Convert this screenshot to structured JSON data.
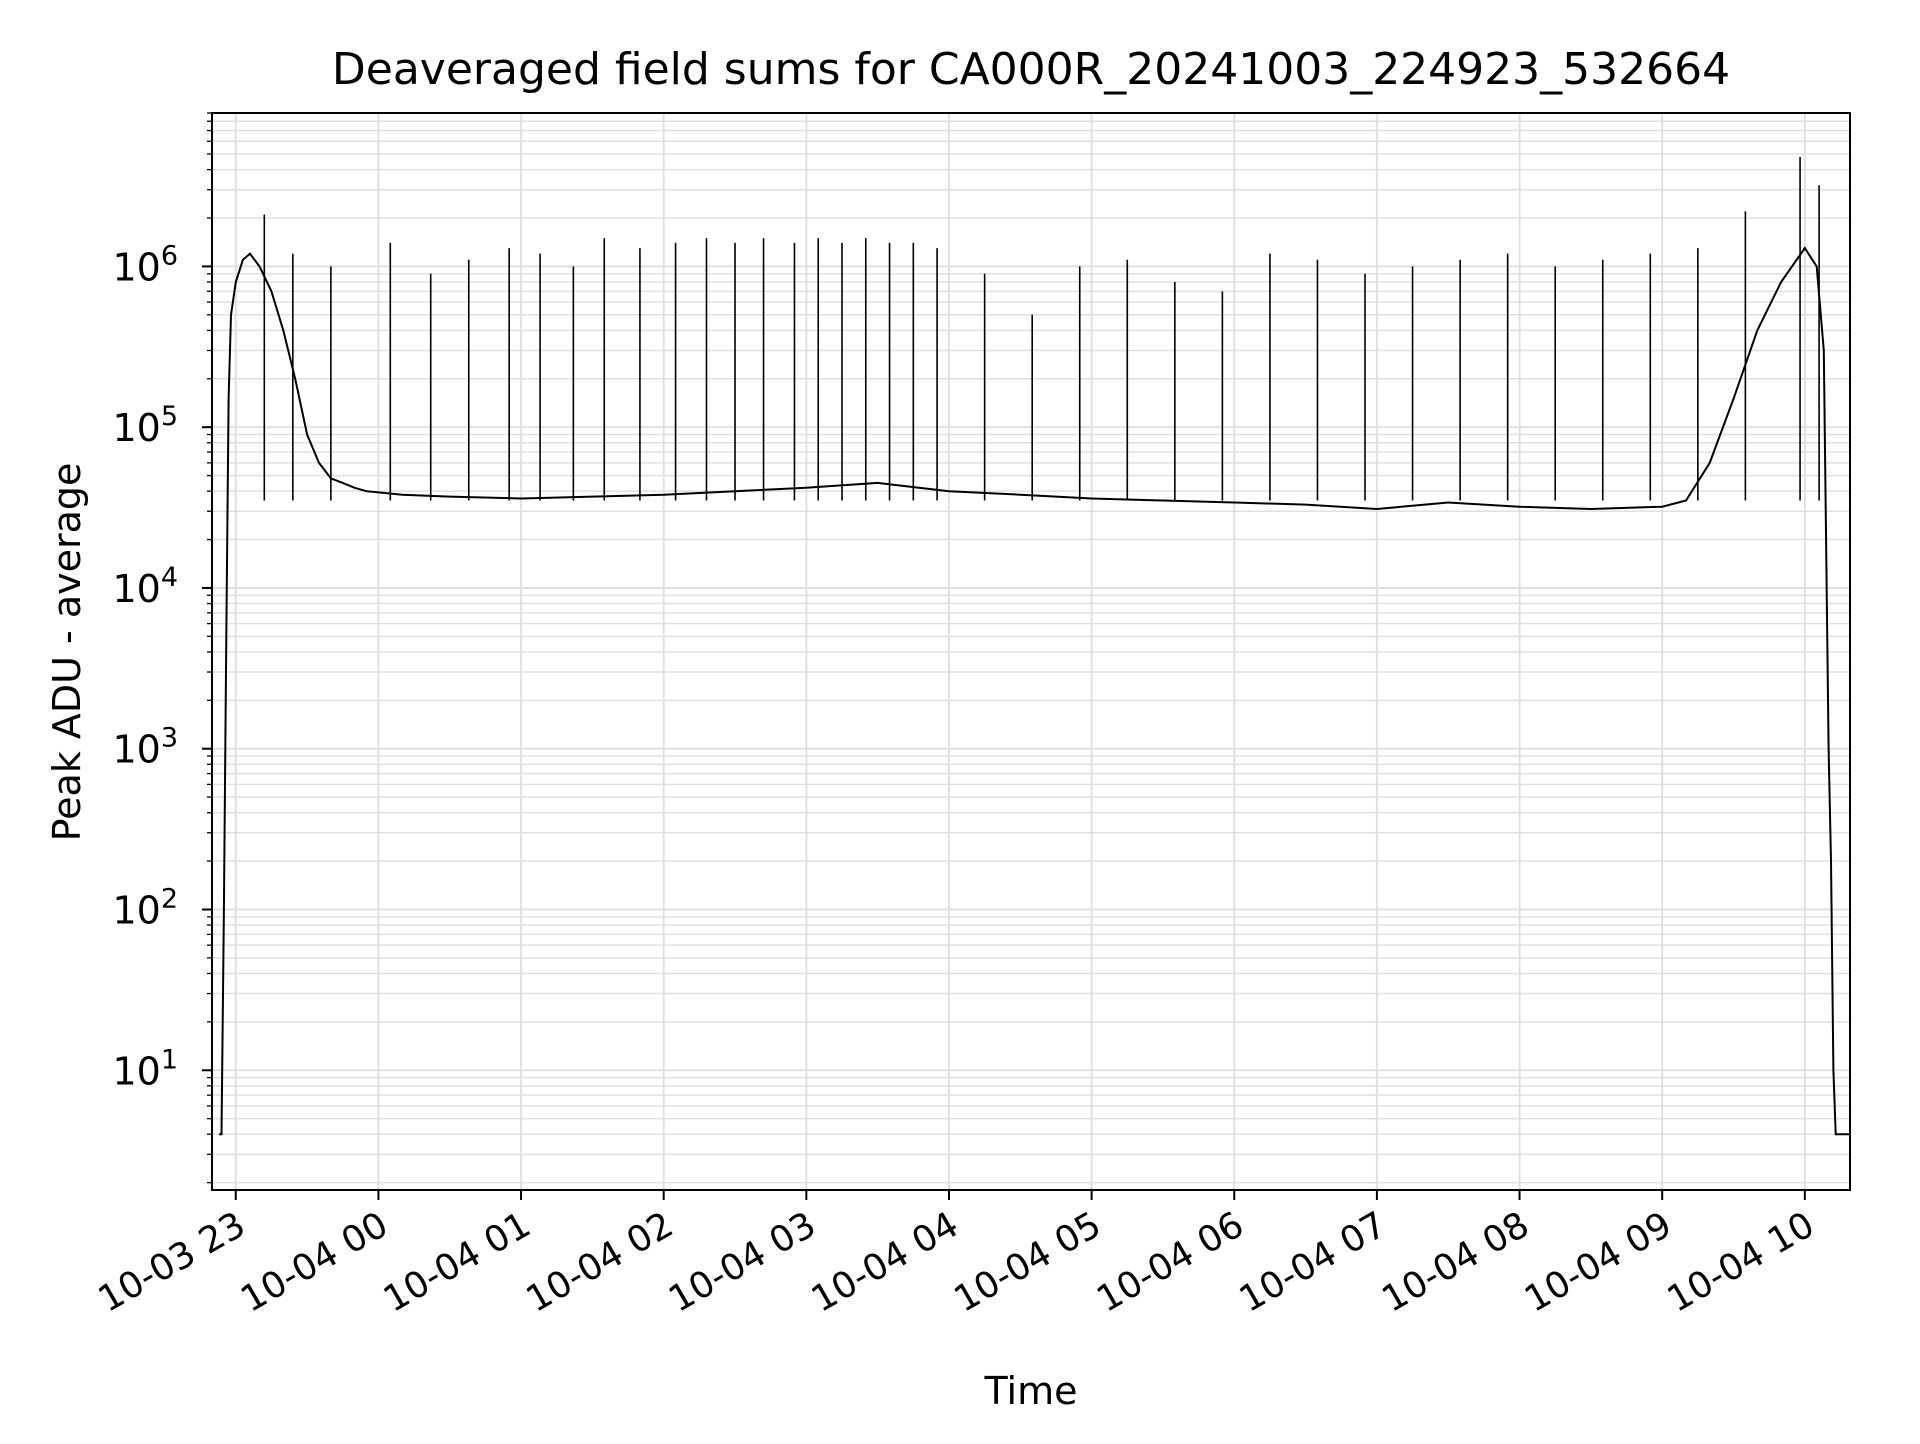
{
  "chart_data": {
    "type": "line",
    "title": "Deaveraged field sums for CA000R_20241003_224923_532664",
    "xlabel": "Time",
    "ylabel": "Peak ADU - average",
    "yscale": "log",
    "ylim": [
      1.8,
      9000000
    ],
    "xlim": [
      "2024-10-03 22:50",
      "2024-10-04 10:19"
    ],
    "grid": true,
    "line_color": "#000000",
    "grid_color": "#e0e0e0",
    "x_ticks": [
      {
        "value": "2024-10-03 23:00",
        "label": "10-03 23"
      },
      {
        "value": "2024-10-04 00:00",
        "label": "10-04 00"
      },
      {
        "value": "2024-10-04 01:00",
        "label": "10-04 01"
      },
      {
        "value": "2024-10-04 02:00",
        "label": "10-04 02"
      },
      {
        "value": "2024-10-04 03:00",
        "label": "10-04 03"
      },
      {
        "value": "2024-10-04 04:00",
        "label": "10-04 04"
      },
      {
        "value": "2024-10-04 05:00",
        "label": "10-04 05"
      },
      {
        "value": "2024-10-04 06:00",
        "label": "10-04 06"
      },
      {
        "value": "2024-10-04 07:00",
        "label": "10-04 07"
      },
      {
        "value": "2024-10-04 08:00",
        "label": "10-04 08"
      },
      {
        "value": "2024-10-04 09:00",
        "label": "10-04 09"
      },
      {
        "value": "2024-10-04 10:00",
        "label": "10-04 10"
      }
    ],
    "y_ticks": [
      {
        "value": 10,
        "base": "10",
        "exp": "1"
      },
      {
        "value": 100,
        "base": "10",
        "exp": "2"
      },
      {
        "value": 1000,
        "base": "10",
        "exp": "3"
      },
      {
        "value": 10000,
        "base": "10",
        "exp": "4"
      },
      {
        "value": 100000,
        "base": "10",
        "exp": "5"
      },
      {
        "value": 1000000,
        "base": "10",
        "exp": "6"
      }
    ],
    "series": [
      {
        "x": [
          "2024-10-03 22:53",
          "2024-10-03 22:54",
          "2024-10-03 22:55",
          "2024-10-03 22:56",
          "2024-10-03 22:57",
          "2024-10-03 22:58",
          "2024-10-03 23:00",
          "2024-10-03 23:03",
          "2024-10-03 23:06",
          "2024-10-03 23:10",
          "2024-10-03 23:15",
          "2024-10-03 23:20",
          "2024-10-03 23:25",
          "2024-10-03 23:30",
          "2024-10-03 23:35",
          "2024-10-03 23:40",
          "2024-10-03 23:45",
          "2024-10-03 23:50",
          "2024-10-03 23:55",
          "2024-10-04 00:10",
          "2024-10-04 00:30",
          "2024-10-04 01:00",
          "2024-10-04 01:30",
          "2024-10-04 02:00",
          "2024-10-04 02:30",
          "2024-10-04 03:00",
          "2024-10-04 03:30",
          "2024-10-04 04:00",
          "2024-10-04 04:30",
          "2024-10-04 05:00",
          "2024-10-04 05:30",
          "2024-10-04 06:00",
          "2024-10-04 06:30",
          "2024-10-04 07:00",
          "2024-10-04 07:30",
          "2024-10-04 08:00",
          "2024-10-04 08:30",
          "2024-10-04 09:00",
          "2024-10-04 09:10",
          "2024-10-04 09:20",
          "2024-10-04 09:30",
          "2024-10-04 09:40",
          "2024-10-04 09:50",
          "2024-10-04 10:00",
          "2024-10-04 10:05",
          "2024-10-04 10:08",
          "2024-10-04 10:10",
          "2024-10-04 10:11",
          "2024-10-04 10:12",
          "2024-10-04 10:13",
          "2024-10-04 10:15",
          "2024-10-04 10:19"
        ],
        "y": [
          4,
          4,
          100,
          5000,
          150000,
          500000,
          800000,
          1100000,
          1200000,
          1000000,
          700000,
          400000,
          200000,
          90000,
          60000,
          48000,
          45000,
          42000,
          40000,
          38000,
          37000,
          36000,
          37000,
          38000,
          40000,
          42000,
          45000,
          40000,
          38000,
          36000,
          35000,
          34000,
          33000,
          31000,
          34000,
          32000,
          31000,
          32000,
          35000,
          60000,
          150000,
          400000,
          800000,
          1300000,
          1000000,
          300000,
          1000,
          200,
          10,
          4,
          4,
          4
        ]
      },
      {
        "spike_x": [
          "2024-10-03 23:12",
          "2024-10-03 23:24",
          "2024-10-03 23:40",
          "2024-10-04 00:05",
          "2024-10-04 00:22",
          "2024-10-04 00:38",
          "2024-10-04 00:55",
          "2024-10-04 01:08",
          "2024-10-04 01:22",
          "2024-10-04 01:35",
          "2024-10-04 01:50",
          "2024-10-04 02:05",
          "2024-10-04 02:18",
          "2024-10-04 02:30",
          "2024-10-04 02:42",
          "2024-10-04 02:55",
          "2024-10-04 03:05",
          "2024-10-04 03:15",
          "2024-10-04 03:25",
          "2024-10-04 03:35",
          "2024-10-04 03:45",
          "2024-10-04 03:55",
          "2024-10-04 04:15",
          "2024-10-04 04:35",
          "2024-10-04 04:55",
          "2024-10-04 05:15",
          "2024-10-04 05:35",
          "2024-10-04 05:55",
          "2024-10-04 06:15",
          "2024-10-04 06:35",
          "2024-10-04 06:55",
          "2024-10-04 07:15",
          "2024-10-04 07:35",
          "2024-10-04 07:55",
          "2024-10-04 08:15",
          "2024-10-04 08:35",
          "2024-10-04 08:55",
          "2024-10-04 09:15",
          "2024-10-04 09:35",
          "2024-10-04 09:58",
          "2024-10-04 10:06"
        ],
        "spike_y": [
          2100000,
          1200000,
          1000000,
          1400000,
          900000,
          1100000,
          1300000,
          1200000,
          1000000,
          1500000,
          1300000,
          1400000,
          1500000,
          1400000,
          1500000,
          1400000,
          1500000,
          1400000,
          1500000,
          1400000,
          1400000,
          1300000,
          900000,
          500000,
          1000000,
          1100000,
          800000,
          700000,
          1200000,
          1100000,
          900000,
          1000000,
          1100000,
          1200000,
          1000000,
          1100000,
          1200000,
          1300000,
          2200000,
          4800000,
          3200000
        ]
      }
    ]
  }
}
